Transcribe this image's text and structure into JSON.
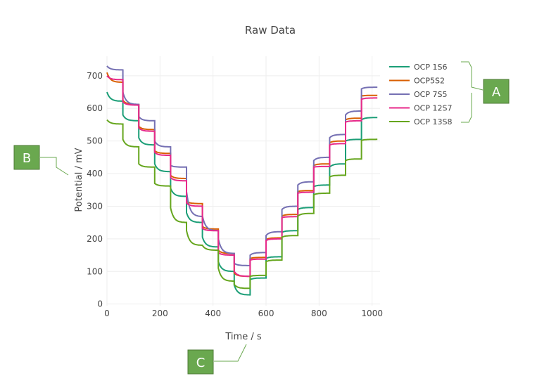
{
  "chart_data": {
    "type": "line",
    "title": "Raw Data",
    "xlabel": "Time / s",
    "ylabel": "Potential / mV",
    "xlim": [
      0,
      1030
    ],
    "ylim": [
      -5,
      760
    ],
    "xticks": [
      0,
      200,
      400,
      600,
      800,
      1000
    ],
    "yticks": [
      0,
      100,
      200,
      300,
      400,
      500,
      600,
      700
    ],
    "grid": true,
    "legend_position": "top-right",
    "step_interval_s": 60,
    "series": [
      {
        "name": "OCP 1S6",
        "color": "#1b9e77",
        "level_starts": [
          650,
          580,
          510,
          430,
          355,
          280,
          205,
          130,
          58,
          75,
          140,
          220,
          290,
          360,
          420,
          500,
          565
        ],
        "level_ends": [
          622,
          562,
          488,
          406,
          330,
          250,
          175,
          100,
          28,
          80,
          145,
          225,
          296,
          365,
          430,
          505,
          572
        ]
      },
      {
        "name": "OCP5S2",
        "color": "#d95f02",
        "level_starts": [
          710,
          625,
          545,
          470,
          395,
          315,
          238,
          165,
          95,
          140,
          198,
          270,
          345,
          425,
          495,
          565,
          638
        ],
        "level_ends": [
          680,
          612,
          535,
          462,
          385,
          308,
          230,
          155,
          85,
          143,
          203,
          275,
          348,
          430,
          500,
          570,
          640
        ]
      },
      {
        "name": "OCP 7S5",
        "color": "#7570b3",
        "level_starts": [
          730,
          650,
          575,
          500,
          425,
          345,
          270,
          200,
          125,
          150,
          210,
          290,
          365,
          440,
          510,
          580,
          660
        ],
        "level_ends": [
          718,
          612,
          562,
          482,
          420,
          268,
          225,
          155,
          118,
          158,
          222,
          300,
          375,
          450,
          520,
          592,
          665
        ]
      },
      {
        "name": "OCP 12S7",
        "color": "#e7298a",
        "level_starts": [
          700,
          620,
          540,
          465,
          388,
          310,
          232,
          158,
          100,
          135,
          195,
          265,
          340,
          420,
          488,
          558,
          628
        ],
        "level_ends": [
          688,
          610,
          530,
          456,
          378,
          300,
          225,
          150,
          85,
          138,
          200,
          268,
          343,
          422,
          492,
          562,
          632
        ]
      },
      {
        "name": "OCP 13S8",
        "color": "#66a61e",
        "level_starts": [
          565,
          505,
          430,
          370,
          295,
          225,
          180,
          110,
          60,
          85,
          130,
          205,
          270,
          335,
          390,
          440,
          502
        ],
        "level_ends": [
          552,
          482,
          420,
          362,
          250,
          180,
          165,
          70,
          48,
          88,
          135,
          210,
          278,
          340,
          395,
          445,
          505
        ]
      }
    ]
  },
  "annotations": [
    {
      "label": "A"
    },
    {
      "label": "B"
    },
    {
      "label": "C"
    }
  ]
}
